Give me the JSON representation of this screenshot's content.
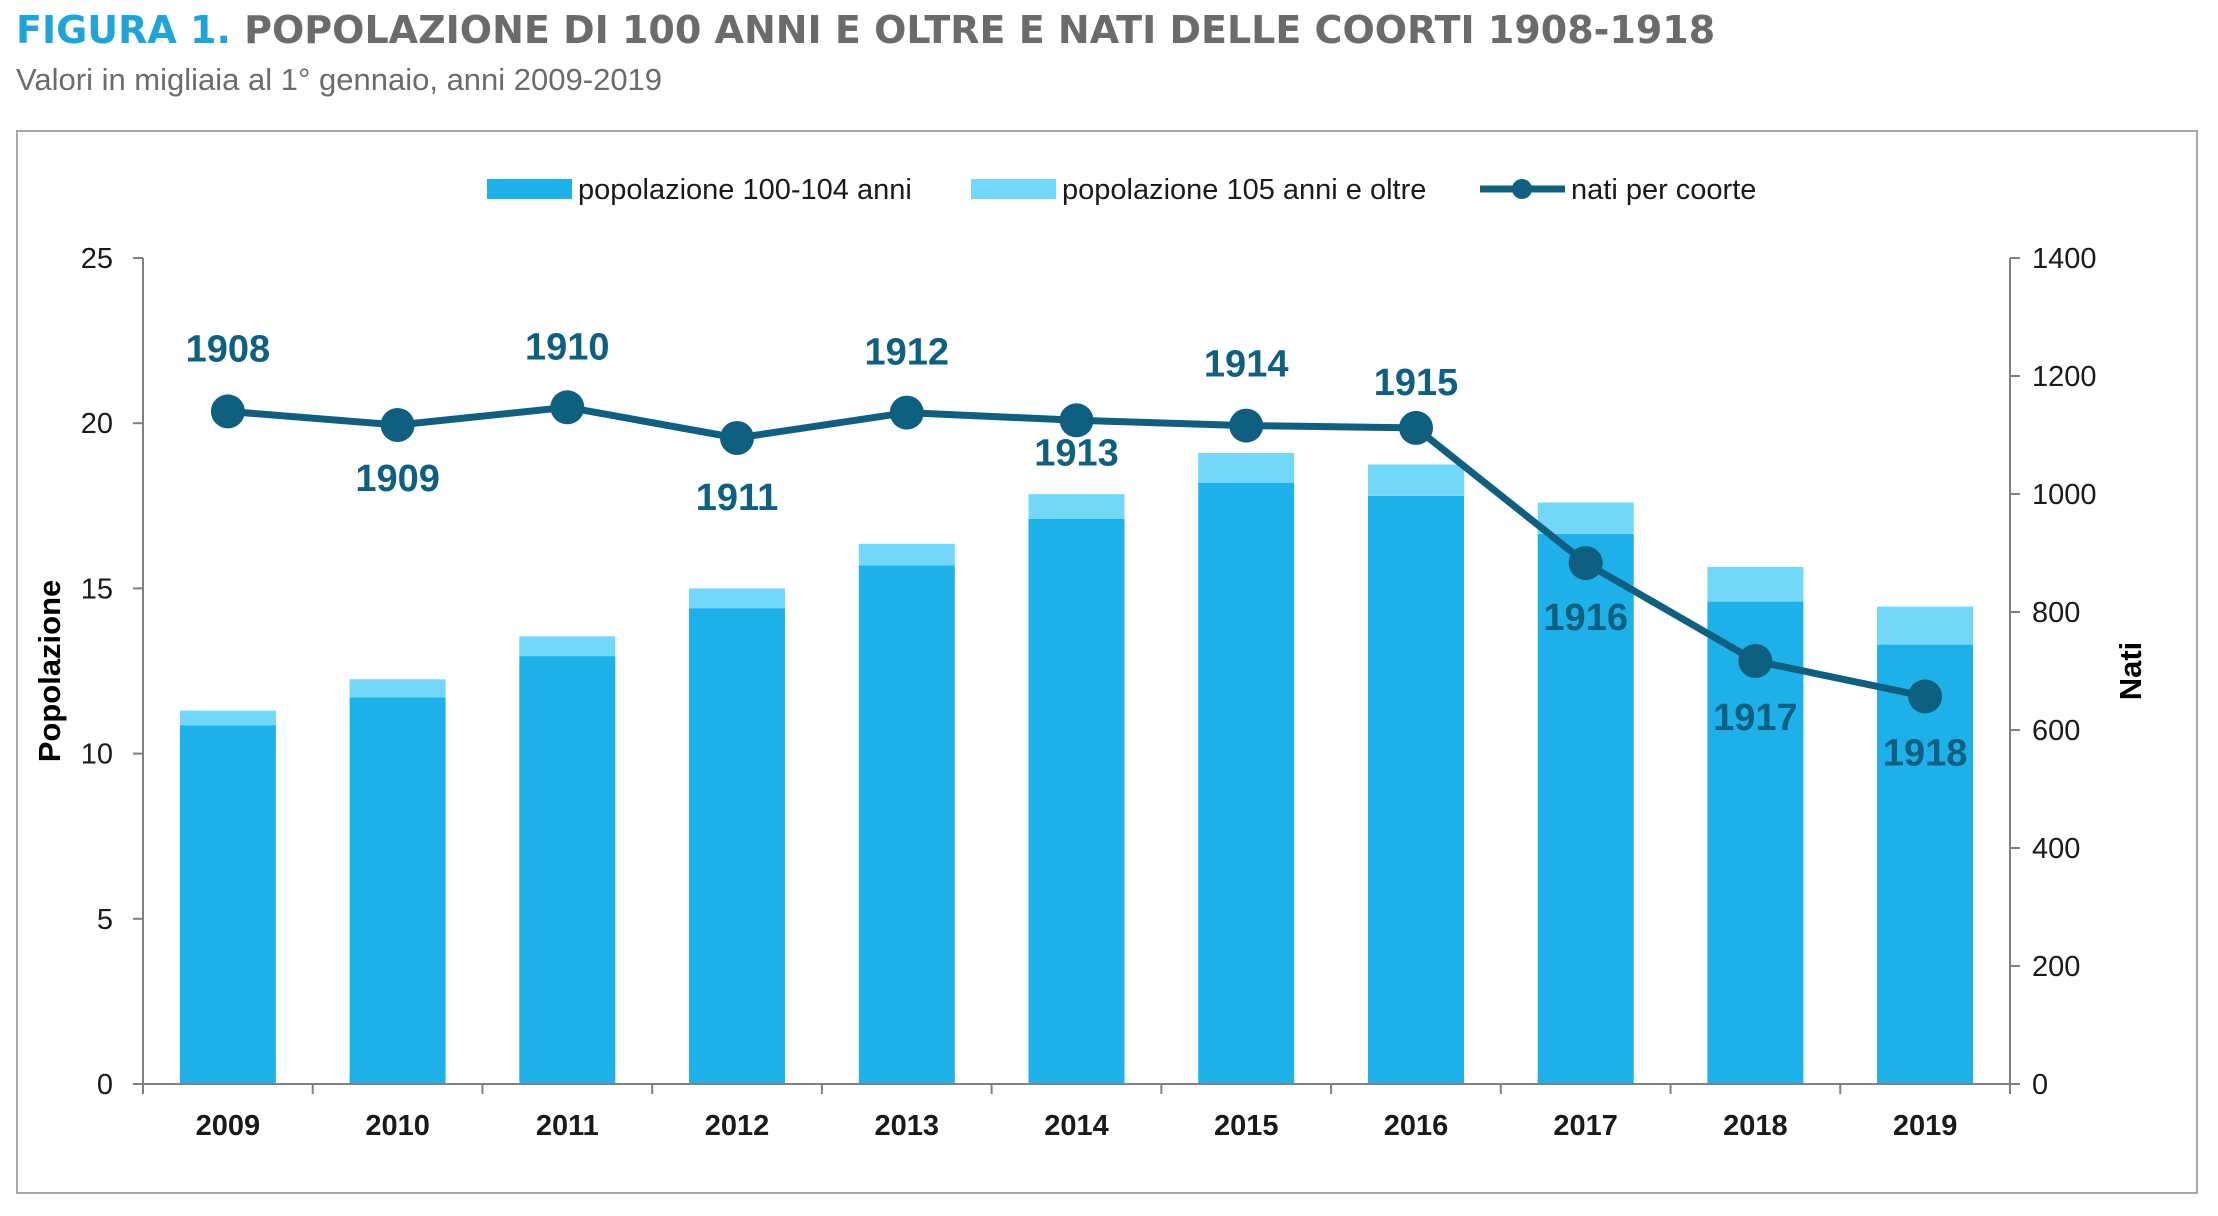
{
  "figure": {
    "label": "FIGURA 1.",
    "title": "POPOLAZIONE DI 100 ANNI E OLTRE E NATI DELLE COORTI 1908-1918",
    "subtitle": "Valori in migliaia al 1° gennaio, anni 2009-2019"
  },
  "colors": {
    "bar_low": "#1eb0e8",
    "bar_high": "#73d7fa",
    "line": "#0e5f80",
    "axis": "#808080",
    "title_label": "#1ea4d9",
    "title_text": "#6b6b6b"
  },
  "chart_data": {
    "type": "bar",
    "stacked": true,
    "categories": [
      "2009",
      "2010",
      "2011",
      "2012",
      "2013",
      "2014",
      "2015",
      "2016",
      "2017",
      "2018",
      "2019"
    ],
    "series": [
      {
        "name": "popolazione 100-104 anni",
        "type": "bar",
        "axis": "left",
        "color": "#1eb0e8",
        "values": [
          10.85,
          11.7,
          12.95,
          14.4,
          15.7,
          17.1,
          18.2,
          17.8,
          16.65,
          14.6,
          13.3
        ]
      },
      {
        "name": "popolazione 105 anni e oltre",
        "type": "bar",
        "axis": "left",
        "color": "#73d7fa",
        "values": [
          0.45,
          0.55,
          0.6,
          0.6,
          0.65,
          0.75,
          0.9,
          0.95,
          0.95,
          1.05,
          1.15
        ]
      },
      {
        "name": "nati per coorte",
        "type": "line",
        "axis": "right",
        "color": "#0e5f80",
        "values": [
          1140,
          1117,
          1147,
          1095,
          1138,
          1125,
          1116,
          1112,
          883,
          717,
          657
        ],
        "labels": [
          "1908",
          "1909",
          "1910",
          "1911",
          "1912",
          "1913",
          "1914",
          "1915",
          "1916",
          "1917",
          "1918"
        ]
      }
    ],
    "y_left": {
      "label": "Popolazione",
      "ylim": [
        0,
        25
      ],
      "ticks": [
        "0",
        "5",
        "10",
        "15",
        "20",
        "25"
      ]
    },
    "y_right": {
      "label": "Nati",
      "ylim": [
        0,
        1400
      ],
      "ticks": [
        "0",
        "200",
        "400",
        "600",
        "800",
        "1000",
        "1200",
        "1400"
      ]
    },
    "legend": {
      "position": "top"
    },
    "grid": false
  }
}
